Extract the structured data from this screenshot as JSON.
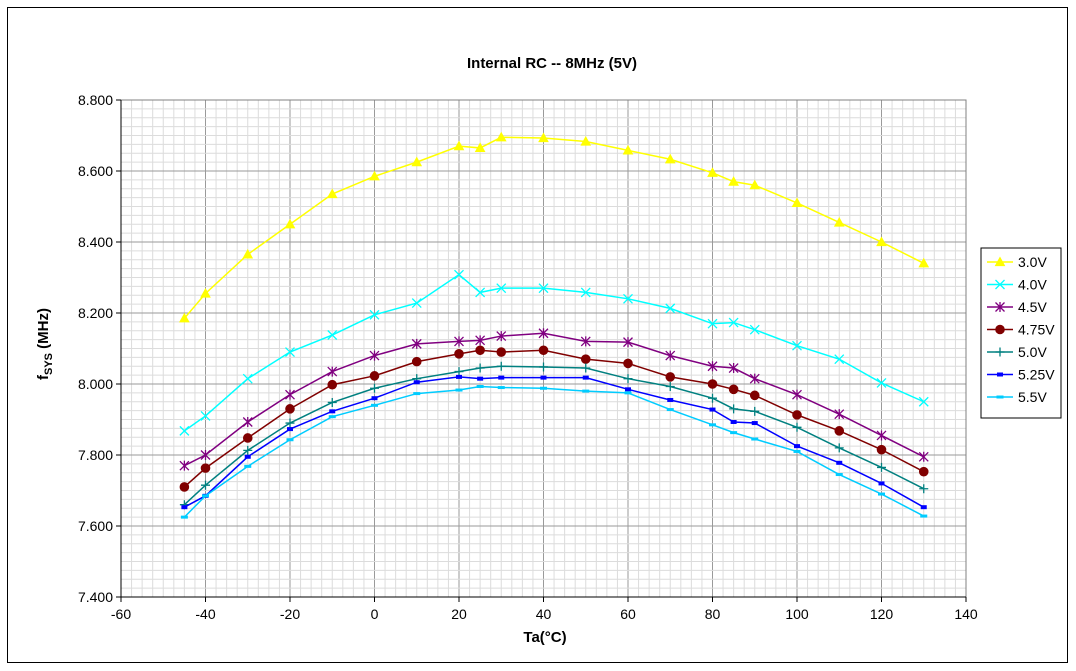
{
  "chart_data": {
    "type": "line",
    "title": "Internal RC -- 8MHz (5V)",
    "xlabel": "Ta(°C)",
    "ylabel": "fSYS (MHz)",
    "ylabel_main": "f",
    "ylabel_sub": "SYS",
    "ylabel_rest": " (MHz)",
    "xlim": [
      -60,
      140
    ],
    "ylim": [
      7.4,
      8.8
    ],
    "x_major_ticks": [
      -60,
      -40,
      -20,
      0,
      20,
      40,
      60,
      80,
      100,
      120,
      140
    ],
    "y_major_ticks": [
      7.4,
      7.6,
      7.8,
      8.0,
      8.2,
      8.4,
      8.6,
      8.8
    ],
    "x_tick_labels": [
      "-60",
      "-40",
      "-20",
      "0",
      "20",
      "40",
      "60",
      "80",
      "100",
      "120",
      "140"
    ],
    "y_tick_labels": [
      "7.400",
      "7.600",
      "7.800",
      "8.000",
      "8.200",
      "8.400",
      "8.600",
      "8.800"
    ],
    "x_minor_step": 2.5,
    "y_minor_step": 0.025,
    "grid": true,
    "legend_position": "right",
    "x": [
      -45,
      -40,
      -30,
      -20,
      -10,
      0,
      10,
      20,
      25,
      30,
      40,
      50,
      60,
      70,
      80,
      85,
      90,
      100,
      110,
      120,
      130
    ],
    "series": [
      {
        "name": "3.0V",
        "color": "#ffff00",
        "marker": "triangle",
        "values": [
          8.185,
          8.255,
          8.365,
          8.45,
          8.535,
          8.585,
          8.625,
          8.67,
          8.665,
          8.695,
          8.693,
          8.683,
          8.658,
          8.633,
          8.595,
          8.57,
          8.56,
          8.51,
          8.455,
          8.4,
          8.34
        ]
      },
      {
        "name": "4.0V",
        "color": "#00ffff",
        "marker": "x",
        "values": [
          7.868,
          7.91,
          8.015,
          8.09,
          8.138,
          8.195,
          8.228,
          8.308,
          8.258,
          8.27,
          8.27,
          8.258,
          8.24,
          8.213,
          8.17,
          8.173,
          8.153,
          8.108,
          8.07,
          8.003,
          7.95
        ]
      },
      {
        "name": "4.5V",
        "color": "#800080",
        "marker": "asterisk",
        "values": [
          7.77,
          7.8,
          7.893,
          7.97,
          8.035,
          8.08,
          8.113,
          8.12,
          8.123,
          8.135,
          8.143,
          8.12,
          8.118,
          8.08,
          8.05,
          8.045,
          8.015,
          7.97,
          7.915,
          7.855,
          7.795
        ]
      },
      {
        "name": "4.75V",
        "color": "#800000",
        "marker": "circle",
        "values": [
          7.71,
          7.763,
          7.848,
          7.93,
          7.998,
          8.023,
          8.063,
          8.085,
          8.095,
          8.09,
          8.095,
          8.07,
          8.058,
          8.02,
          8.0,
          7.985,
          7.968,
          7.913,
          7.868,
          7.815,
          7.753
        ]
      },
      {
        "name": "5.0V",
        "color": "#008080",
        "marker": "plus",
        "values": [
          7.66,
          7.715,
          7.813,
          7.89,
          7.948,
          7.988,
          8.015,
          8.035,
          8.045,
          8.05,
          8.048,
          8.045,
          8.015,
          7.993,
          7.96,
          7.93,
          7.923,
          7.878,
          7.82,
          7.765,
          7.705
        ]
      },
      {
        "name": "5.25V",
        "color": "#0000ff",
        "marker": "dash",
        "values": [
          7.653,
          7.685,
          7.795,
          7.873,
          7.923,
          7.96,
          8.005,
          8.02,
          8.015,
          8.018,
          8.018,
          8.018,
          7.985,
          7.955,
          7.928,
          7.893,
          7.89,
          7.825,
          7.778,
          7.72,
          7.653
        ]
      },
      {
        "name": "5.5V",
        "color": "#00ccff",
        "marker": "square-dash",
        "values": [
          7.625,
          7.685,
          7.768,
          7.843,
          7.908,
          7.94,
          7.973,
          7.983,
          7.993,
          7.99,
          7.988,
          7.98,
          7.975,
          7.928,
          7.885,
          7.863,
          7.845,
          7.81,
          7.745,
          7.69,
          7.628
        ]
      }
    ]
  }
}
